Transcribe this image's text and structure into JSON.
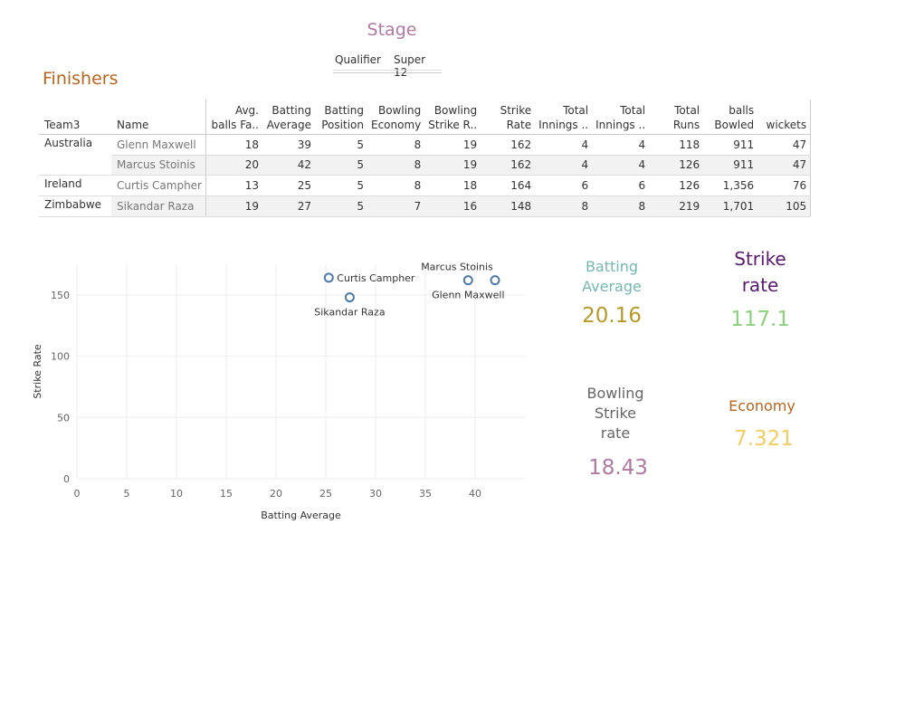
{
  "stage": {
    "title": "Stage",
    "options": [
      "Qualifier",
      "Super 12"
    ]
  },
  "section_title": "Finishers",
  "table": {
    "columns": [
      "Team3",
      "Name",
      "Avg.\nballs Fa..",
      "Batting\nAverage",
      "Batting\nPosition",
      "Bowling\nEconomy",
      "Bowling\nStrike R..",
      "Strike\nRate",
      "Total\nInnings ..",
      "Total\nInnings ..",
      "Total\nRuns",
      "balls\nBowled",
      "wickets"
    ],
    "rows": [
      {
        "team": "Australia",
        "name": "Glenn Maxwell",
        "values": [
          "18",
          "39",
          "5",
          "8",
          "19",
          "162",
          "4",
          "4",
          "118",
          "911",
          "47"
        ]
      },
      {
        "team": "",
        "name": "Marcus Stoinis",
        "values": [
          "20",
          "42",
          "5",
          "8",
          "19",
          "162",
          "4",
          "4",
          "126",
          "911",
          "47"
        ]
      },
      {
        "team": "Ireland",
        "name": "Curtis Campher",
        "values": [
          "13",
          "25",
          "5",
          "8",
          "18",
          "164",
          "6",
          "6",
          "126",
          "1,356",
          "76"
        ]
      },
      {
        "team": "Zimbabwe",
        "name": "Sikandar Raza",
        "values": [
          "19",
          "27",
          "5",
          "7",
          "16",
          "148",
          "8",
          "8",
          "219",
          "1,701",
          "105"
        ]
      }
    ]
  },
  "chart_data": {
    "type": "scatter",
    "xlabel": "Batting Average",
    "ylabel": "Strike Rate",
    "xlim": [
      0,
      45
    ],
    "ylim": [
      0,
      175
    ],
    "xticks": [
      0,
      5,
      10,
      15,
      20,
      25,
      30,
      35,
      40
    ],
    "yticks": [
      0,
      50,
      100,
      150
    ],
    "grid": true,
    "points": [
      {
        "label": "Curtis Campher",
        "x": 25.3,
        "y": 164
      },
      {
        "label": "Sikandar Raza",
        "x": 27.4,
        "y": 148
      },
      {
        "label": "Glenn Maxwell",
        "x": 39.3,
        "y": 162
      },
      {
        "label": "Marcus Stoinis",
        "x": 42.0,
        "y": 162
      }
    ],
    "point_color": "#4e79a7"
  },
  "kpis": [
    {
      "label": "Batting\nAverage",
      "value": "20.16",
      "label_color": "#76b7b2",
      "value_color": "#b59a2a"
    },
    {
      "label": "Strike\nrate",
      "value": "117.1",
      "label_color": "#5a1a6e",
      "value_color": "#8cd17d"
    },
    {
      "label": "Bowling\nStrike\nrate",
      "value": "18.43",
      "label_color": "#666666",
      "value_color": "#b07aa1"
    },
    {
      "label": "Economy",
      "value": "7.321",
      "label_color": "#b5651d",
      "value_color": "#f1ce63"
    }
  ]
}
